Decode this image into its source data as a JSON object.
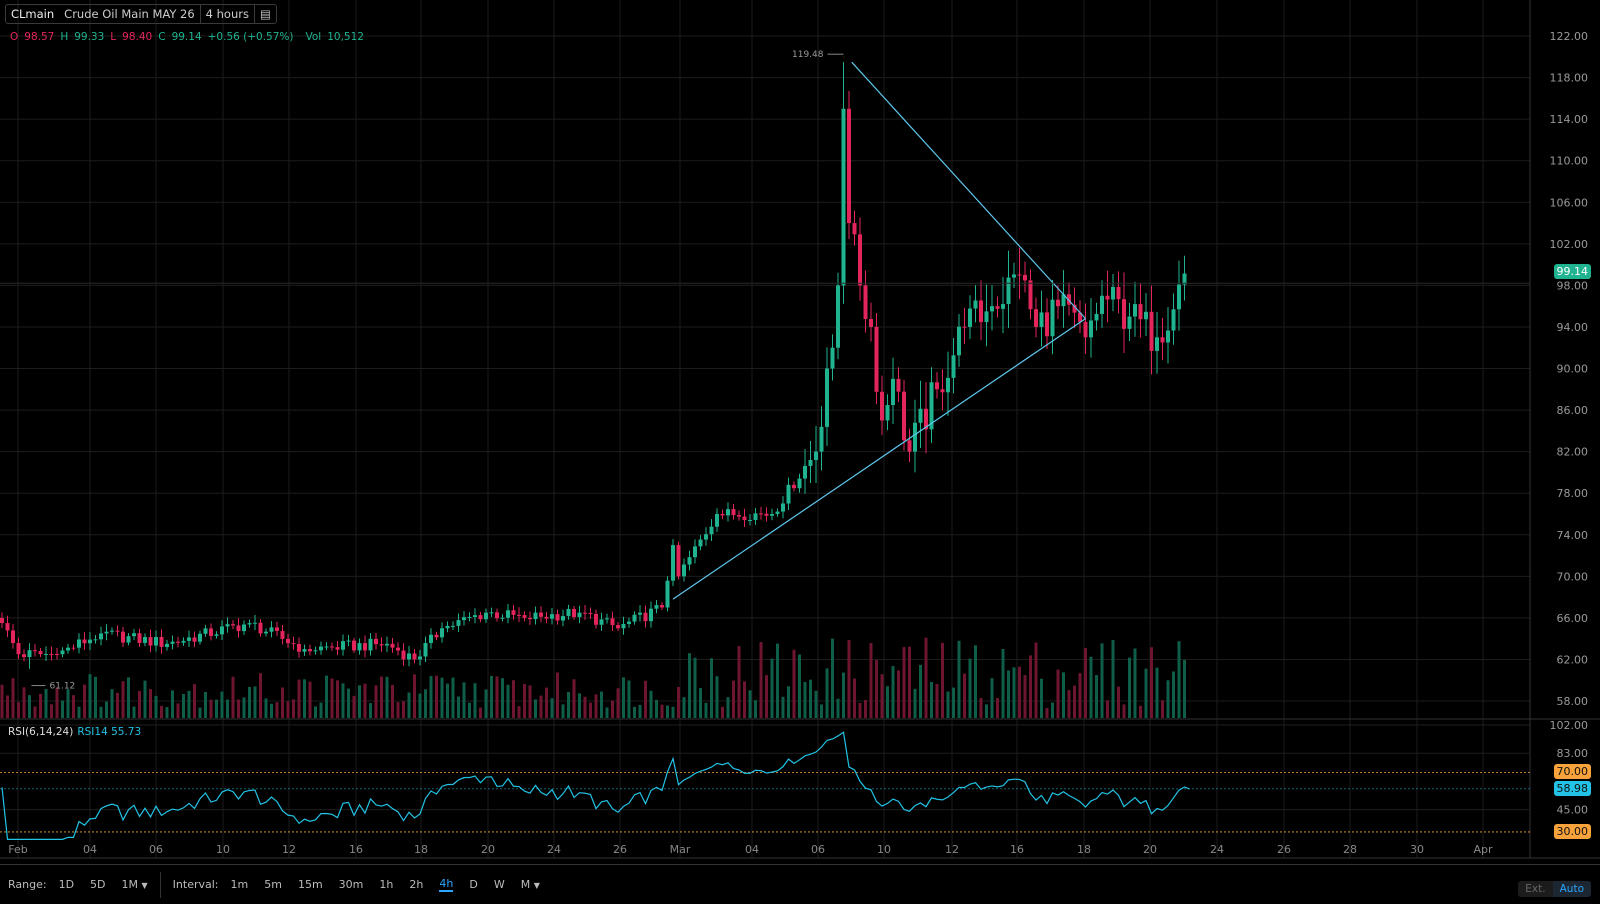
{
  "header": {
    "symbol": "CLmain",
    "name": "Crude Oil Main MAY 26",
    "interval": "4 hours",
    "menu_icon": "list-icon"
  },
  "ohlc": {
    "o_label": "O",
    "o": "98.57",
    "h_label": "H",
    "h": "99.33",
    "l_label": "L",
    "l": "98.40",
    "c_label": "C",
    "c": "99.14",
    "change": "+0.56 (+0.57%)",
    "vol_label": "Vol",
    "vol": "10,512"
  },
  "rsi": {
    "label": "RSI(6,14,24)",
    "value_label": "RSI14 55.73",
    "axis": [
      "102.00",
      "83.00",
      "45.00"
    ],
    "levels": {
      "upper": "70.00",
      "lower": "30.00",
      "current": "58.98"
    }
  },
  "bottom": {
    "range_label": "Range:",
    "ranges": [
      "1D",
      "5D",
      "1M"
    ],
    "interval_label": "Interval:",
    "intervals": [
      "1m",
      "5m",
      "15m",
      "30m",
      "1h",
      "2h",
      "4h",
      "D",
      "W",
      "M"
    ],
    "active_interval": "4h",
    "ext": "Ext.",
    "auto": "Auto"
  },
  "chart_data": {
    "type": "candlestick",
    "title": "CLmain Crude Oil Main MAY 26 4 hours",
    "price_ticks": [
      "122.00",
      "118.00",
      "114.00",
      "110.00",
      "106.00",
      "102.00",
      "98.00",
      "94.00",
      "90.00",
      "86.00",
      "82.00",
      "78.00",
      "74.00",
      "70.00",
      "66.00",
      "62.00",
      "58.00"
    ],
    "ylim": [
      58,
      122
    ],
    "x_ticks": [
      "Feb",
      "04",
      "06",
      "10",
      "12",
      "16",
      "18",
      "20",
      "24",
      "26",
      "Mar",
      "04",
      "06",
      "10",
      "12",
      "16",
      "18",
      "20",
      "24",
      "26",
      "28",
      "30",
      "Apr"
    ],
    "last_price": "99.14",
    "high_label": "119.48",
    "low_label": "61.12",
    "price_path": [
      [
        0,
        65.5
      ],
      [
        3,
        62.5
      ],
      [
        10,
        62.5
      ],
      [
        18,
        64.5
      ],
      [
        30,
        63.5
      ],
      [
        45,
        65.5
      ],
      [
        55,
        63
      ],
      [
        70,
        63.5
      ],
      [
        75,
        62
      ],
      [
        80,
        65
      ],
      [
        88,
        66.5
      ],
      [
        95,
        66
      ],
      [
        105,
        66.5
      ],
      [
        112,
        65
      ],
      [
        120,
        67
      ],
      [
        122,
        73
      ],
      [
        123,
        70
      ],
      [
        130,
        76
      ],
      [
        140,
        76
      ],
      [
        148,
        82
      ],
      [
        150,
        90
      ],
      [
        151,
        92
      ],
      [
        152,
        98
      ],
      [
        153,
        115
      ],
      [
        154,
        104
      ],
      [
        156,
        98
      ],
      [
        158,
        94
      ],
      [
        160,
        85
      ],
      [
        162,
        89
      ],
      [
        165,
        82
      ],
      [
        170,
        88
      ],
      [
        175,
        94
      ],
      [
        180,
        96
      ],
      [
        185,
        99
      ],
      [
        188,
        94
      ],
      [
        192,
        96
      ],
      [
        197,
        93
      ],
      [
        200,
        97
      ],
      [
        205,
        95
      ],
      [
        210,
        93
      ],
      [
        215,
        99.14
      ]
    ],
    "trendlines": [
      [
        [
          122,
          67.8
        ],
        [
          197,
          94.8
        ]
      ],
      [
        [
          154.5,
          119.48
        ],
        [
          197,
          94.8
        ]
      ]
    ],
    "colors": {
      "up": "#1fb38f",
      "down": "#e2265b",
      "trend": "#5ec8ee",
      "rsi": "#22c3e6",
      "overbought": "#f7a23b"
    }
  }
}
